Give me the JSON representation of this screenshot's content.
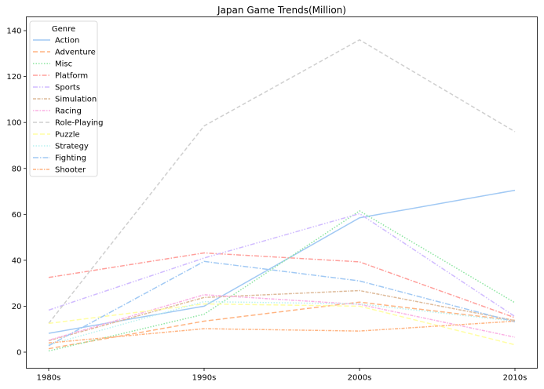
{
  "chart_data": {
    "type": "line",
    "title": "Japan Game Trends(Million)",
    "xlabel": "",
    "ylabel": "",
    "categories": [
      "1980s",
      "1990s",
      "2000s",
      "2010s"
    ],
    "ylim": [
      -7,
      146
    ],
    "yticks": [
      0,
      20,
      40,
      60,
      80,
      100,
      120,
      140
    ],
    "grid": false,
    "legend": {
      "title": "Genre",
      "placement": "top-left"
    },
    "series": [
      {
        "name": "Action",
        "values": [
          8.2,
          20.0,
          58.5,
          70.5
        ],
        "color": "#a1c9f4",
        "dash": ""
      },
      {
        "name": "Adventure",
        "values": [
          1.5,
          13.5,
          21.8,
          13.8
        ],
        "color": "#ffb482",
        "dash": "6,3"
      },
      {
        "name": "Misc",
        "values": [
          0.5,
          16.5,
          61.5,
          21.5
        ],
        "color": "#8de5a1",
        "dash": "1.5,2"
      },
      {
        "name": "Platform",
        "values": [
          32.5,
          43.2,
          39.3,
          15.0
        ],
        "color": "#ff9f9b",
        "dash": "6,2,1.5,2"
      },
      {
        "name": "Sports",
        "values": [
          18.3,
          41.0,
          60.3,
          15.5
        ],
        "color": "#d0bbff",
        "dash": "6,2,1.5,2,1.5,2"
      },
      {
        "name": "Simulation",
        "values": [
          5.0,
          23.8,
          26.8,
          13.8
        ],
        "color": "#debb9b",
        "dash": "4,1.5,4,1.5,1.5,1.5"
      },
      {
        "name": "Racing",
        "values": [
          5.2,
          25.0,
          20.8,
          6.5
        ],
        "color": "#fab0e4",
        "dash": "1.5,1.5,4,1.5"
      },
      {
        "name": "Role-Playing",
        "values": [
          12.5,
          98.5,
          136.0,
          96.0
        ],
        "color": "#cfcfcf",
        "dash": "5,3"
      },
      {
        "name": "Puzzle",
        "values": [
          12.5,
          21.0,
          20.0,
          3.2
        ],
        "color": "#fffea3",
        "dash": "6,3"
      },
      {
        "name": "Strategy",
        "values": [
          3.2,
          22.0,
          21.0,
          13.5
        ],
        "color": "#b9f2f0",
        "dash": "1.5,2"
      },
      {
        "name": "Fighting",
        "values": [
          2.8,
          39.5,
          31.0,
          13.2
        ],
        "color": "#a1c9f4",
        "dash": "7,2,1.5,2"
      },
      {
        "name": "Shooter",
        "values": [
          4.0,
          10.2,
          9.2,
          13.5
        ],
        "color": "#ffb482",
        "dash": "4,1.5,1.5,1.5"
      }
    ]
  }
}
